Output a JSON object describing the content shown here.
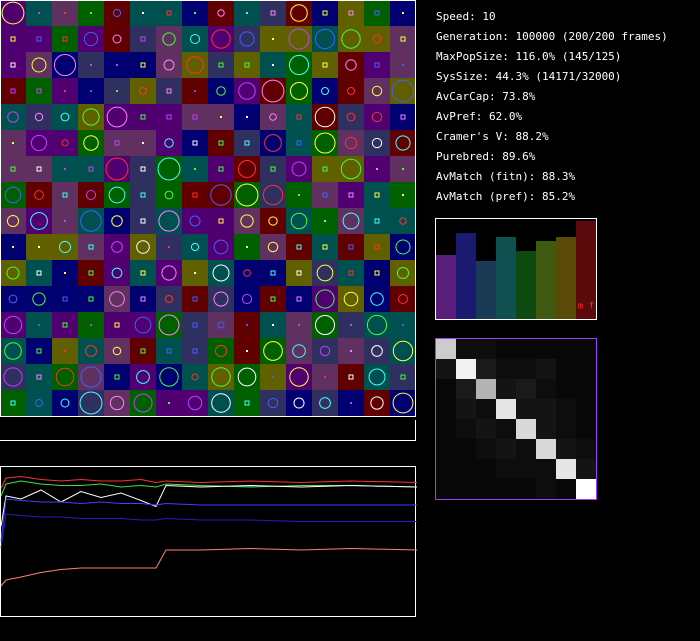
{
  "stats": [
    "Speed: 10",
    "Generation: 100000 (200/200 frames)",
    "MaxPopSize: 116.0% (145/125)",
    "SysSize: 44.3% (14171/32000)",
    "AvCarCap: 73.8%",
    "AvPref: 62.0%",
    "Cramer's V: 88.2%",
    "Purebred: 89.6%",
    "AvMatch (fitn): 88.3%",
    "AvMatch (pref): 85.2%"
  ],
  "bar_panel": {
    "label": "m f",
    "bars": [
      {
        "color": "#5a1f7a",
        "value": 0.64
      },
      {
        "color": "#1a1a70",
        "value": 0.86
      },
      {
        "color": "#1a3a55",
        "value": 0.58
      },
      {
        "color": "#0f5050",
        "value": 0.82
      },
      {
        "color": "#0f4a10",
        "value": 0.68
      },
      {
        "color": "#3f5a10",
        "value": 0.78
      },
      {
        "color": "#5a4a08",
        "value": 0.82
      },
      {
        "color": "#5a0a0a",
        "value": 0.98
      }
    ]
  },
  "matrix": [
    [
      0.8,
      0.05,
      0.05,
      0.03,
      0.03,
      0.03,
      0.03,
      0.03
    ],
    [
      0.08,
      0.95,
      0.1,
      0.05,
      0.05,
      0.08,
      0.03,
      0.03
    ],
    [
      0.03,
      0.1,
      0.7,
      0.08,
      0.1,
      0.05,
      0.03,
      0.03
    ],
    [
      0.03,
      0.08,
      0.05,
      0.9,
      0.08,
      0.08,
      0.05,
      0.03
    ],
    [
      0.03,
      0.05,
      0.08,
      0.05,
      0.85,
      0.08,
      0.05,
      0.03
    ],
    [
      0.03,
      0.03,
      0.05,
      0.08,
      0.05,
      0.85,
      0.08,
      0.05
    ],
    [
      0.03,
      0.03,
      0.03,
      0.05,
      0.05,
      0.05,
      0.9,
      0.08
    ],
    [
      0.03,
      0.03,
      0.03,
      0.03,
      0.03,
      0.05,
      0.03,
      1.0
    ]
  ],
  "history": {
    "x": [
      0,
      5,
      20,
      40,
      60,
      80,
      100,
      120,
      140,
      155,
      165,
      200,
      250,
      300,
      350,
      416
    ],
    "series": [
      {
        "color": "#ff3030",
        "values": [
          0.85,
          0.92,
          0.93,
          0.91,
          0.9,
          0.91,
          0.9,
          0.9,
          0.91,
          0.89,
          0.9,
          0.89,
          0.9,
          0.89,
          0.9,
          0.89
        ]
      },
      {
        "color": "#40e040",
        "values": [
          0.8,
          0.88,
          0.9,
          0.88,
          0.87,
          0.87,
          0.88,
          0.86,
          0.87,
          0.86,
          0.88,
          0.87,
          0.86,
          0.87,
          0.87,
          0.86
        ]
      },
      {
        "color": "#ffffff",
        "values": [
          0.6,
          0.8,
          0.78,
          0.84,
          0.76,
          0.83,
          0.79,
          0.82,
          0.77,
          0.73,
          0.87,
          0.86,
          0.87,
          0.86,
          0.87,
          0.86
        ]
      },
      {
        "color": "#4040ff",
        "values": [
          0.5,
          0.78,
          0.77,
          0.76,
          0.76,
          0.75,
          0.76,
          0.75,
          0.75,
          0.74,
          0.75,
          0.74,
          0.74,
          0.74,
          0.74,
          0.74
        ]
      },
      {
        "color": "#2020c0",
        "values": [
          0.45,
          0.68,
          0.67,
          0.66,
          0.66,
          0.65,
          0.65,
          0.65,
          0.64,
          0.64,
          0.65,
          0.64,
          0.64,
          0.63,
          0.63,
          0.63
        ]
      },
      {
        "color": "#ff8070",
        "values": [
          0.2,
          0.24,
          0.26,
          0.29,
          0.31,
          0.32,
          0.32,
          0.32,
          0.32,
          0.32,
          0.44,
          0.44,
          0.45,
          0.44,
          0.45,
          0.44
        ]
      }
    ]
  }
}
